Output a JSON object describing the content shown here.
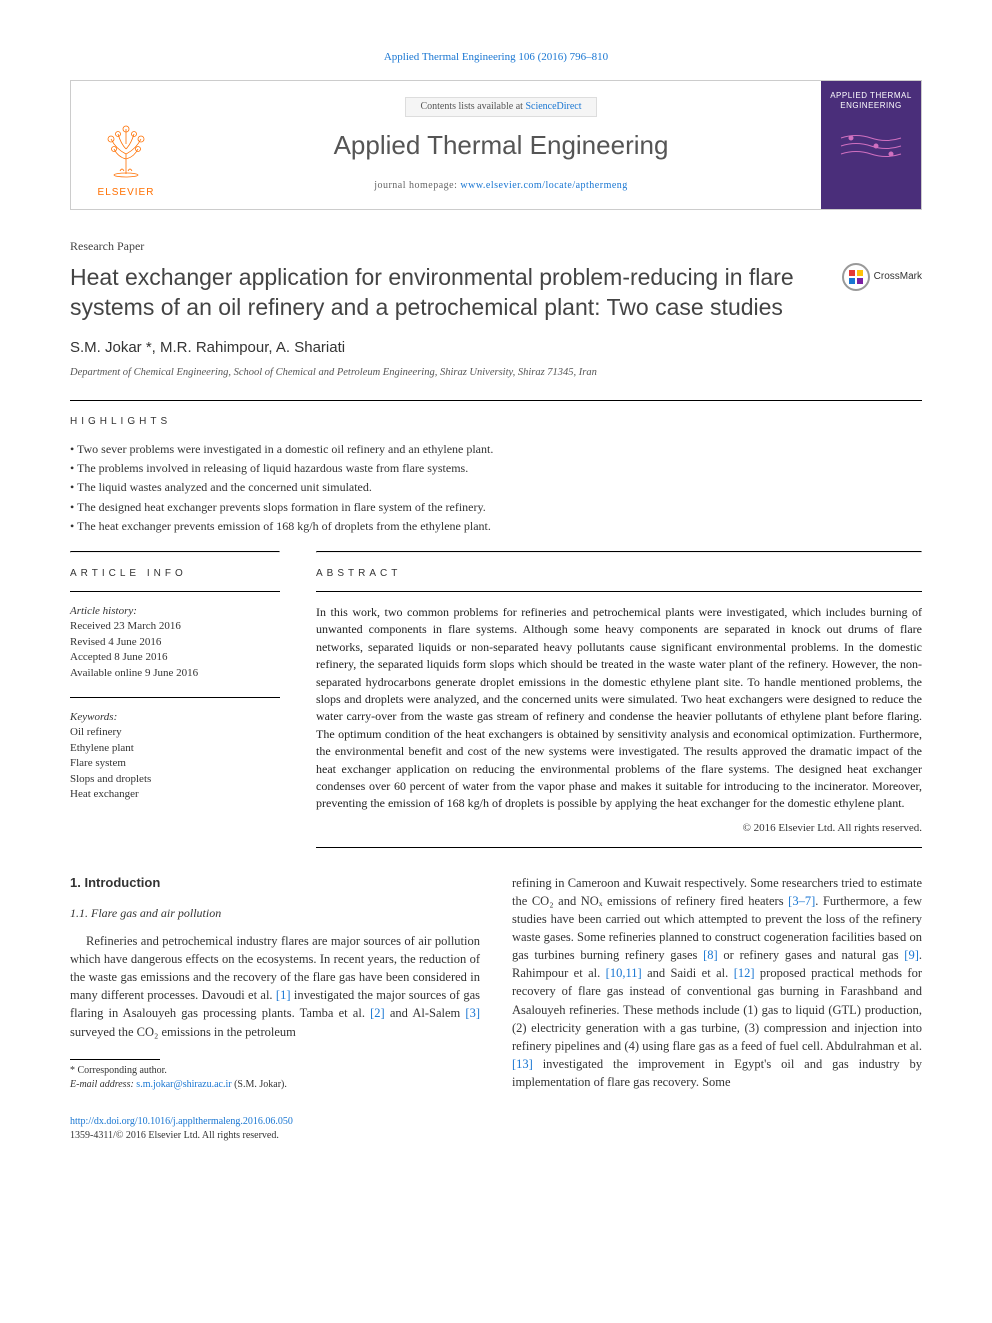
{
  "header_citation": "Applied Thermal Engineering 106 (2016) 796–810",
  "banner": {
    "publisher": "ELSEVIER",
    "contents_prefix": "Contents lists available at ",
    "contents_link": "ScienceDirect",
    "journal_title": "Applied Thermal Engineering",
    "homepage_prefix": "journal homepage: ",
    "homepage_url": "www.elsevier.com/locate/apthermeng",
    "cover_title": "APPLIED THERMAL ENGINEERING"
  },
  "paper_type": "Research Paper",
  "title": "Heat exchanger application for environmental problem-reducing in flare systems of an oil refinery and a petrochemical plant: Two case studies",
  "crossmark": "CrossMark",
  "authors": "S.M. Jokar *, M.R. Rahimpour, A. Shariati",
  "affiliation": "Department of Chemical Engineering, School of Chemical and Petroleum Engineering, Shiraz University, Shiraz 71345, Iran",
  "highlights_label": "HIGHLIGHTS",
  "highlights": [
    "Two sever problems were investigated in a domestic oil refinery and an ethylene plant.",
    "The problems involved in releasing of liquid hazardous waste from flare systems.",
    "The liquid wastes analyzed and the concerned unit simulated.",
    "The designed heat exchanger prevents slops formation in flare system of the refinery.",
    "The heat exchanger prevents emission of 168 kg/h of droplets from the ethylene plant."
  ],
  "article_info_label": "ARTICLE INFO",
  "abstract_label": "ABSTRACT",
  "history_label": "Article history:",
  "history": [
    "Received 23 March 2016",
    "Revised 4 June 2016",
    "Accepted 8 June 2016",
    "Available online 9 June 2016"
  ],
  "keywords_label": "Keywords:",
  "keywords": [
    "Oil refinery",
    "Ethylene plant",
    "Flare system",
    "Slops and droplets",
    "Heat exchanger"
  ],
  "abstract": "In this work, two common problems for refineries and petrochemical plants were investigated, which includes burning of unwanted components in flare systems. Although some heavy components are separated in knock out drums of flare networks, separated liquids or non-separated heavy pollutants cause significant environmental problems. In the domestic refinery, the separated liquids form slops which should be treated in the waste water plant of the refinery. However, the non-separated hydrocarbons generate droplet emissions in the domestic ethylene plant site. To handle mentioned problems, the slops and droplets were analyzed, and the concerned units were simulated. Two heat exchangers were designed to reduce the water carry-over from the waste gas stream of refinery and condense the heavier pollutants of ethylene plant before flaring. The optimum condition of the heat exchangers is obtained by sensitivity analysis and economical optimization. Furthermore, the environmental benefit and cost of the new systems were investigated. The results approved the dramatic impact of the heat exchanger application on reducing the environmental problems of the flare systems. The designed heat exchanger condenses over 60 percent of water from the vapor phase and makes it suitable for introducing to the incinerator. Moreover, preventing the emission of 168 kg/h of droplets is possible by applying the heat exchanger for the domestic ethylene plant.",
  "copyright": "© 2016 Elsevier Ltd. All rights reserved.",
  "intro_heading": "1. Introduction",
  "intro_sub": "1.1. Flare gas and air pollution",
  "intro_para": "Refineries and petrochemical industry flares are major sources of air pollution which have dangerous effects on the ecosystems. In recent years, the reduction of the waste gas emissions and the recovery of the flare gas have been considered in many different processes. Davoudi et al. [1] investigated the major sources of gas flaring in Asalouyeh gas processing plants. Tamba et al. [2] and Al-Salem [3] surveyed the CO₂ emissions in the petroleum",
  "intro_para2": "refining in Cameroon and Kuwait respectively. Some researchers tried to estimate the CO₂ and NOₓ emissions of refinery fired heaters [3–7]. Furthermore, a few studies have been carried out which attempted to prevent the loss of the refinery waste gases. Some refineries planned to construct cogeneration facilities based on gas turbines burning refinery gases [8] or refinery gases and natural gas [9]. Rahimpour et al. [10,11] and Saidi et al. [12] proposed practical methods for recovery of flare gas instead of conventional gas burning in Farashband and Asalouyeh refineries. These methods include (1) gas to liquid (GTL) production, (2) electricity generation with a gas turbine, (3) compression and injection into refinery pipelines and (4) using flare gas as a feed of fuel cell. Abdulrahman et al. [13] investigated the improvement in Egypt's oil and gas industry by implementation of flare gas recovery. Some",
  "corr_label": "* Corresponding author.",
  "email_label": "E-mail address: ",
  "email": "s.m.jokar@shirazu.ac.ir",
  "email_suffix": " (S.M. Jokar).",
  "doi": "http://dx.doi.org/10.1016/j.applthermaleng.2016.06.050",
  "issn_line": "1359-4311/© 2016 Elsevier Ltd. All rights reserved.",
  "colors": {
    "link": "#1976d2",
    "publisher": "#ff6f00",
    "cover_bg": "#4a2e7a",
    "text": "#333333"
  }
}
